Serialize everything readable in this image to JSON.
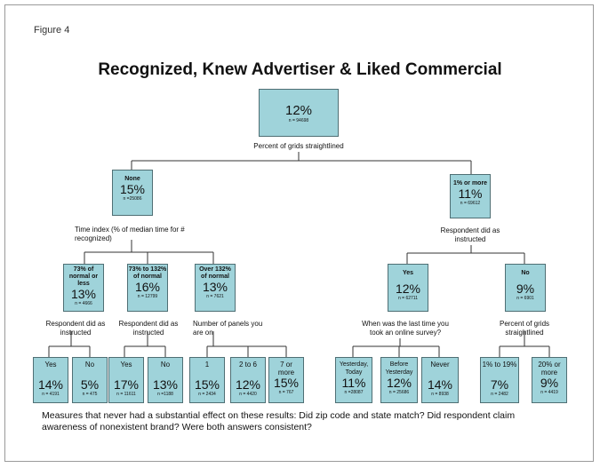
{
  "figure_label": "Figure 4",
  "title": "Recognized, Knew Advertiser & Liked Commercial",
  "root": {
    "pct": "12%",
    "n": "n = 94698"
  },
  "root_split": "Percent of grids straightlined",
  "l1": [
    {
      "label": "None",
      "pct": "15%",
      "n": "n =25086"
    },
    {
      "label": "1% or more",
      "pct": "11%",
      "n": "n = 69612"
    }
  ],
  "left_split": "Time index (% of median time for # recognized)",
  "right_split": "Respondent did as instructed",
  "l2": [
    {
      "label": "73% of normal or less",
      "pct": "13%",
      "n": "n = 4666"
    },
    {
      "label": "73% to 132% of normal",
      "pct": "16%",
      "n": "n = 12799"
    },
    {
      "label": "Over 132% of normal",
      "pct": "13%",
      "n": "n = 7621"
    },
    {
      "label": "Yes",
      "pct": "12%",
      "n": "n = 62711"
    },
    {
      "label": "No",
      "pct": "9%",
      "n": "n = 6901"
    }
  ],
  "l2_splits": [
    "Respondent did as instructed",
    "Respondent did as instructed",
    "Number of panels you are on",
    "When was the last time you took an online survey?",
    "Percent of grids straightlined"
  ],
  "l3": [
    {
      "label": "Yes",
      "pct": "14%",
      "n": "n = 4191"
    },
    {
      "label": "No",
      "pct": "5%",
      "n": "n = 475"
    },
    {
      "label": "Yes",
      "pct": "17%",
      "n": "n = 11611"
    },
    {
      "label": "No",
      "pct": "13%",
      "n": "n =1188"
    },
    {
      "label": "1",
      "pct": "15%",
      "n": "n = 2434"
    },
    {
      "label": "2 to 6",
      "pct": "12%",
      "n": "n = 4420"
    },
    {
      "label": "7 or more",
      "pct": "15%",
      "n": "n = 767"
    },
    {
      "label": "Yesterday, Today",
      "pct": "11%",
      "n": "n =28087"
    },
    {
      "label": "Before Yesterday",
      "pct": "12%",
      "n": "n = 25686"
    },
    {
      "label": "Never",
      "pct": "14%",
      "n": "n = 8938"
    },
    {
      "label": "1% to 19%",
      "pct": "7%",
      "n": "n = 2482"
    },
    {
      "label": "20% or more",
      "pct": "9%",
      "n": "n = 4419"
    }
  ],
  "footer": "Measures that never had a substantial effect on these results:  Did zip code and state match?  Did respondent claim awareness of nonexistent brand?  Were both answers consistent?"
}
